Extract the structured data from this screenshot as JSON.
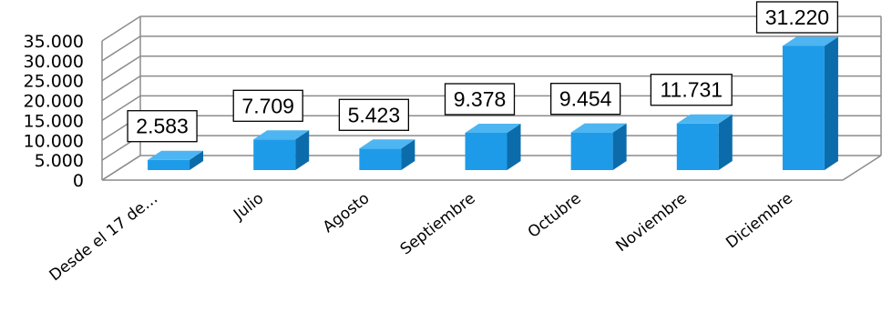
{
  "chart_data": {
    "type": "bar",
    "categories": [
      "Desde el 17 de…",
      "Julio",
      "Agosto",
      "Septiembre",
      "Octubre",
      "Noviembre",
      "Diciembre"
    ],
    "values": [
      2583,
      7709,
      5423,
      9378,
      9454,
      11731,
      31220
    ],
    "data_labels": [
      "2.583",
      "7.709",
      "5.423",
      "9.378",
      "9.454",
      "11.731",
      "31.220"
    ],
    "y_ticks": [
      "0",
      "5.000",
      "10.000",
      "15.000",
      "20.000",
      "25.000",
      "30.000",
      "35.000"
    ],
    "ylim": [
      0,
      35000
    ],
    "grid": true,
    "style": "3d",
    "colors": {
      "bar_front": "#1e9be8",
      "bar_side": "#0c6cab",
      "bar_top": "#4db6f2",
      "grid": "#8c8c8c"
    }
  }
}
